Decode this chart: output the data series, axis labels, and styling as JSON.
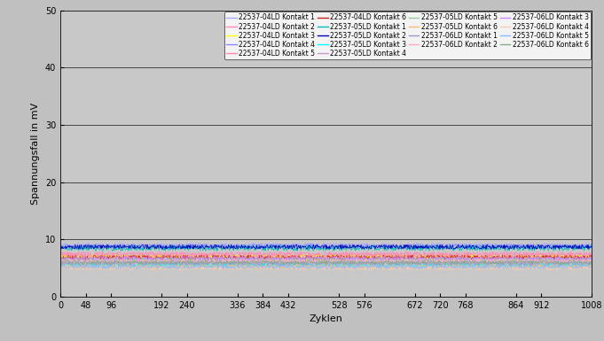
{
  "title": "",
  "xlabel": "Zyklen",
  "ylabel": "Spannungsfall in mV",
  "xlim": [
    0,
    1008
  ],
  "ylim": [
    0,
    50
  ],
  "xticks": [
    0,
    48,
    96,
    192,
    240,
    336,
    384,
    432,
    528,
    576,
    672,
    720,
    768,
    864,
    912,
    1008
  ],
  "yticks": [
    0,
    10,
    20,
    30,
    40,
    50
  ],
  "outer_bg": "#c0c0c0",
  "plot_bg_color": "#c8c8c8",
  "legend_bg": "#ffffff",
  "series": [
    {
      "label": "22537-04LD Kontakt 1",
      "color": "#aaaaff",
      "base": 9.0,
      "noise": 0.4
    },
    {
      "label": "22537-04LD Kontakt 2",
      "color": "#ff88bb",
      "base": 7.5,
      "noise": 0.35
    },
    {
      "label": "22537-04LD Kontakt 3",
      "color": "#ffff00",
      "base": 7.0,
      "noise": 0.35
    },
    {
      "label": "22537-04LD Kontakt 4",
      "color": "#8888ff",
      "base": 8.8,
      "noise": 0.4
    },
    {
      "label": "22537-04LD Kontakt 5",
      "color": "#ff88aa",
      "base": 7.2,
      "noise": 0.4
    },
    {
      "label": "22537-04LD Kontakt 6",
      "color": "#cc2222",
      "base": 6.8,
      "noise": 0.45
    },
    {
      "label": "22537-05LD Kontakt 1",
      "color": "#00bbbb",
      "base": 8.5,
      "noise": 0.5
    },
    {
      "label": "22537-05LD Kontakt 2",
      "color": "#0000bb",
      "base": 8.7,
      "noise": 0.4
    },
    {
      "label": "22537-05LD Kontakt 3",
      "color": "#00ffff",
      "base": 5.5,
      "noise": 0.35
    },
    {
      "label": "22537-05LD Kontakt 4",
      "color": "#cc99cc",
      "base": 6.0,
      "noise": 0.35
    },
    {
      "label": "22537-05LD Kontakt 5",
      "color": "#99cc99",
      "base": 6.5,
      "noise": 0.35
    },
    {
      "label": "22537-05LD Kontakt 6",
      "color": "#ffbb77",
      "base": 5.3,
      "noise": 0.35
    },
    {
      "label": "22537-06LD Kontakt 1",
      "color": "#9999cc",
      "base": 5.8,
      "noise": 0.4
    },
    {
      "label": "22537-06LD Kontakt 2",
      "color": "#ffaacc",
      "base": 6.3,
      "noise": 0.35
    },
    {
      "label": "22537-06LD Kontakt 3",
      "color": "#cc88ff",
      "base": 6.7,
      "noise": 0.35
    },
    {
      "label": "22537-06LD Kontakt 4",
      "color": "#ffccaa",
      "base": 5.0,
      "noise": 0.35
    },
    {
      "label": "22537-06LD Kontakt 5",
      "color": "#88bbff",
      "base": 5.2,
      "noise": 0.35
    },
    {
      "label": "22537-06LD Kontakt 6",
      "color": "#88aa88",
      "base": 6.0,
      "noise": 0.35
    }
  ],
  "n_points": 1009,
  "font_size": 7,
  "axis_label_size": 8,
  "legend_font_size": 5.5,
  "linewidth": 0.5
}
